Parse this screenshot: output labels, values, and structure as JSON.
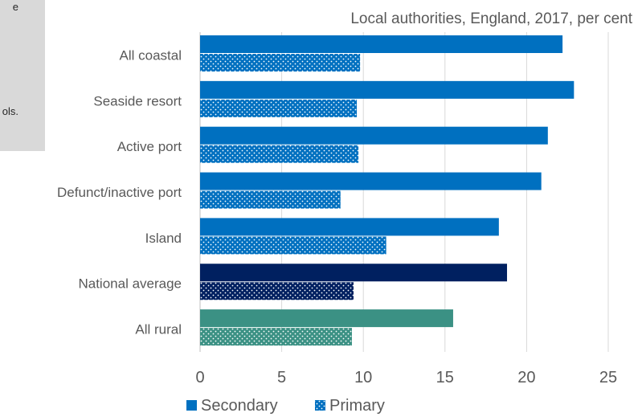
{
  "note": {
    "lines": [
      "e",
      "ols."
    ]
  },
  "chart_data": {
    "type": "bar",
    "orientation": "horizontal",
    "title": "",
    "subtitle": "Local authorities, England, 2017, per cent",
    "categories": [
      "All coastal",
      "Seaside resort",
      "Active port",
      "Defunct/inactive port",
      "Island",
      "National average",
      "All rural"
    ],
    "series": [
      {
        "name": "Secondary",
        "values": [
          22.2,
          22.9,
          21.3,
          20.9,
          18.3,
          18.8,
          15.5
        ],
        "pattern": "solid",
        "color": "#0070c0",
        "colors": [
          "#0070c0",
          "#0070c0",
          "#0070c0",
          "#0070c0",
          "#0070c0",
          "#002060",
          "#3b9184"
        ]
      },
      {
        "name": "Primary",
        "values": [
          9.8,
          9.6,
          9.7,
          8.6,
          11.4,
          9.4,
          9.3
        ],
        "pattern": "dotted",
        "color": "#0070c0",
        "colors": [
          "#0070c0",
          "#0070c0",
          "#0070c0",
          "#0070c0",
          "#0070c0",
          "#002060",
          "#3b9184"
        ]
      }
    ],
    "xlim": [
      0,
      25
    ],
    "xticks": [
      0,
      5,
      10,
      15,
      20,
      25
    ],
    "xlabel": "",
    "ylabel": "",
    "grid": "vertical",
    "legend": "bottom"
  }
}
